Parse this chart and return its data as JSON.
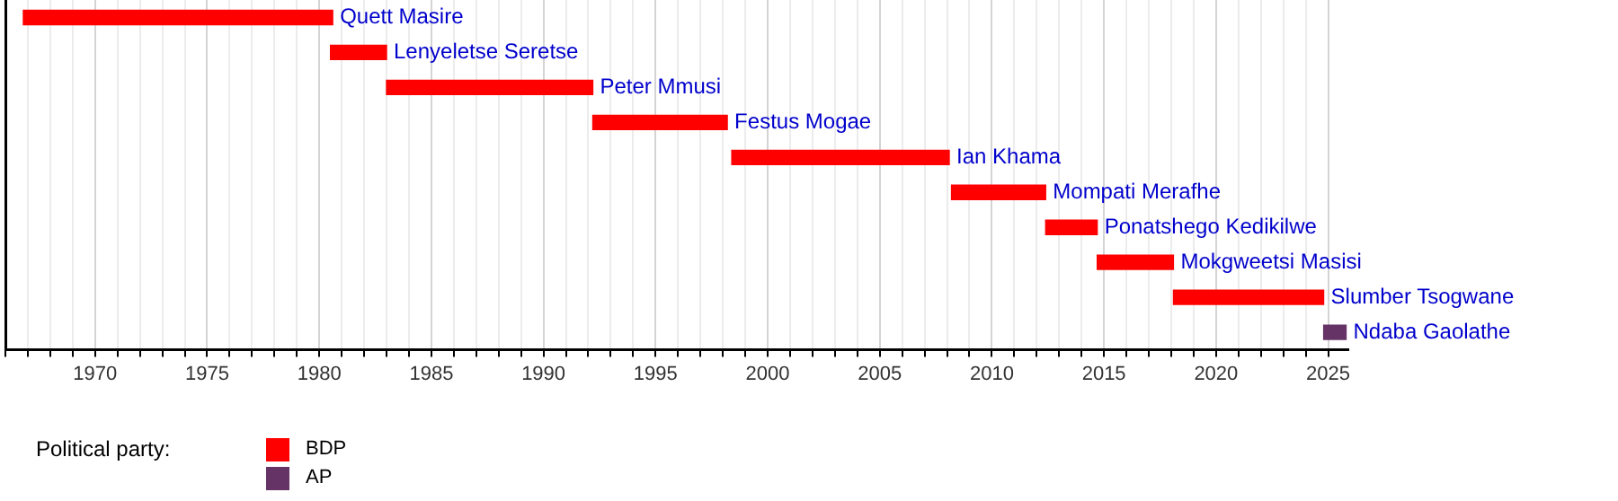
{
  "chart_data": {
    "type": "bar",
    "orientation": "horizontal",
    "categories": [
      "Quett Masire",
      "Lenyeletse Seretse",
      "Peter Mmusi",
      "Festus Mogae",
      "Ian Khama",
      "Mompati Merafhe",
      "Ponatshego Kedikilwe",
      "Mokgweetsi Masisi",
      "Slumber Tsogwane",
      "Ndaba Gaolathe"
    ],
    "series": [
      {
        "name": "BDP",
        "color": "#ff0000",
        "base": [
          1966.8,
          1980.5,
          1983.0,
          1992.2,
          1998.4,
          2008.2,
          2012.4,
          2014.7,
          2018.1,
          null
        ],
        "values": [
          13.8,
          2.5,
          9.2,
          6.0,
          9.7,
          4.2,
          2.3,
          3.4,
          6.7,
          null
        ]
      },
      {
        "name": "AP",
        "color": "#663366",
        "base": [
          null,
          null,
          null,
          null,
          null,
          null,
          null,
          null,
          null,
          2024.8
        ],
        "values": [
          null,
          null,
          null,
          null,
          null,
          null,
          null,
          null,
          null,
          1.0
        ]
      }
    ],
    "xlim": [
      1966,
      2025.9
    ],
    "xticks": [
      {
        "value": 1966,
        "label": null
      },
      {
        "value": 1967,
        "label": null
      },
      {
        "value": 1968,
        "label": null
      },
      {
        "value": 1969,
        "label": null
      },
      1970,
      {
        "value": 1971,
        "label": null
      },
      {
        "value": 1972,
        "label": null
      },
      {
        "value": 1973,
        "label": null
      },
      {
        "value": 1974,
        "label": null
      },
      1975,
      {
        "value": 1976,
        "label": null
      },
      {
        "value": 1977,
        "label": null
      },
      {
        "value": 1978,
        "label": null
      },
      {
        "value": 1979,
        "label": null
      },
      1980,
      {
        "value": 1981,
        "label": null
      },
      {
        "value": 1982,
        "label": null
      },
      {
        "value": 1983,
        "label": null
      },
      {
        "value": 1984,
        "label": null
      },
      1985,
      {
        "value": 1986,
        "label": null
      },
      {
        "value": 1987,
        "label": null
      },
      {
        "value": 1988,
        "label": null
      },
      {
        "value": 1989,
        "label": null
      },
      1990,
      {
        "value": 1991,
        "label": null
      },
      {
        "value": 1992,
        "label": null
      },
      {
        "value": 1993,
        "label": null
      },
      {
        "value": 1994,
        "label": null
      },
      1995,
      {
        "value": 1996,
        "label": null
      },
      {
        "value": 1997,
        "label": null
      },
      {
        "value": 1998,
        "label": null
      },
      {
        "value": 1999,
        "label": null
      },
      2000,
      {
        "value": 2001,
        "label": null
      },
      {
        "value": 2002,
        "label": null
      },
      {
        "value": 2003,
        "label": null
      },
      {
        "value": 2004,
        "label": null
      },
      2005,
      {
        "value": 2006,
        "label": null
      },
      {
        "value": 2007,
        "label": null
      },
      {
        "value": 2008,
        "label": null
      },
      {
        "value": 2009,
        "label": null
      },
      2010,
      {
        "value": 2011,
        "label": null
      },
      {
        "value": 2012,
        "label": null
      },
      {
        "value": 2013,
        "label": null
      },
      {
        "value": 2014,
        "label": null
      },
      2015,
      {
        "value": 2016,
        "label": null
      },
      {
        "value": 2017,
        "label": null
      },
      {
        "value": 2018,
        "label": null
      },
      {
        "value": 2019,
        "label": null
      },
      2020,
      {
        "value": 2021,
        "label": null
      },
      {
        "value": 2022,
        "label": null
      },
      {
        "value": 2023,
        "label": null
      },
      {
        "value": 2024,
        "label": null
      },
      2025
    ],
    "grid": "x",
    "tick_labels": "x",
    "legend": "bottom left",
    "legend_title": "Political party:"
  }
}
